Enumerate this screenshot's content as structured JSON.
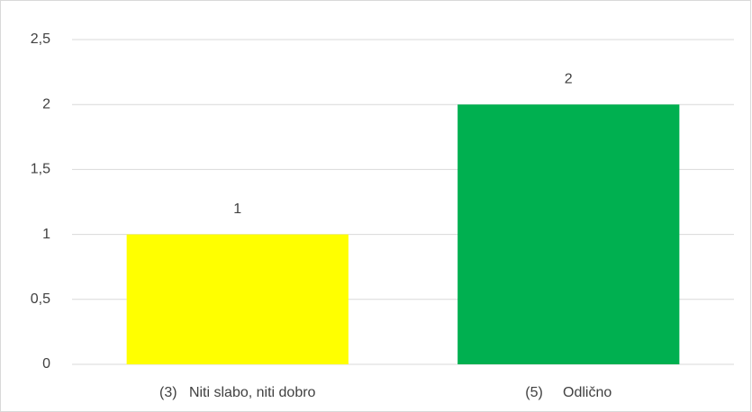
{
  "chart_data": {
    "type": "bar",
    "categories": [
      "(3)   Niti slabo, niti dobro",
      "(5)     Odlično"
    ],
    "values": [
      1,
      2
    ],
    "colors": [
      "#ffff00",
      "#00b050"
    ],
    "ylim": [
      0,
      2.5
    ],
    "yticks": [
      0,
      {
        "value": 0.5,
        "label": "0,5"
      },
      1,
      {
        "value": 1.5,
        "label": "1,5"
      },
      2,
      {
        "value": 2.5,
        "label": "2,5"
      }
    ],
    "grid": true
  }
}
